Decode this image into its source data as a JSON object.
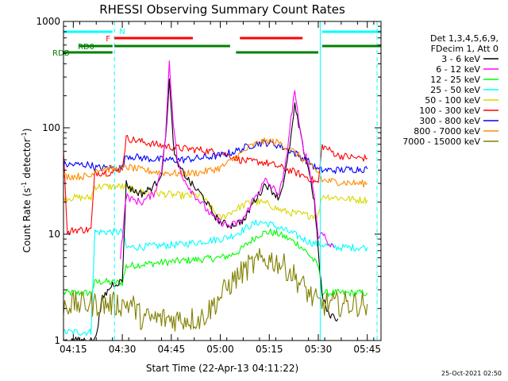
{
  "chart_data": {
    "type": "line",
    "title": "RHESSI Observing Summary Count Rates",
    "xlabel": "Start Time (22-Apr-13 04:11:22)",
    "ylabel": "Count Rate (s⁻¹ detector⁻¹)",
    "ylabel_parts": {
      "text": "Count Rate (s",
      "sup1": "-1",
      "mid": " detector",
      "sup2": "-1",
      "end": ")"
    },
    "yscale": "log",
    "xlim": [
      4.2,
      5.82
    ],
    "ylim": [
      1,
      1000
    ],
    "x_tick_labels": [
      "04:15",
      "04:30",
      "04:45",
      "05:00",
      "05:15",
      "05:30",
      "05:45"
    ],
    "x_tick_values": [
      4.25,
      4.5,
      4.75,
      5.0,
      5.25,
      5.5,
      5.75
    ],
    "y_tick_labels": [
      "1",
      "10",
      "100",
      "1000"
    ],
    "y_tick_values": [
      1,
      10,
      100,
      1000
    ],
    "legend_header": [
      "Det 1,3,4,5,6,9,",
      "FDecim 1, Att 0"
    ],
    "timestamp": "25-Oct-2021 02:50",
    "series": [
      {
        "name": "3 - 6 keV",
        "color": "#000000",
        "x": [
          4.2,
          4.22,
          4.25,
          4.3,
          4.34,
          4.36,
          4.4,
          4.45,
          4.5,
          4.52,
          4.55,
          4.6,
          4.63,
          4.66,
          4.68,
          4.7,
          4.72,
          4.74,
          4.76,
          4.78,
          4.8,
          4.82,
          4.85,
          4.88,
          4.9,
          4.93,
          4.97,
          5.0,
          5.05,
          5.1,
          5.13,
          5.16,
          5.2,
          5.23,
          5.26,
          5.3,
          5.33,
          5.36,
          5.38,
          5.4,
          5.42,
          5.45,
          5.48,
          5.5,
          5.52,
          5.55,
          5.6
        ],
        "y": [
          1,
          1,
          1,
          1,
          1,
          1,
          2.5,
          3.4,
          3.6,
          30,
          26,
          24,
          26,
          28,
          32,
          38,
          75,
          280,
          70,
          45,
          40,
          36,
          30,
          26,
          24,
          20,
          15,
          13,
          12,
          13,
          14,
          19,
          24,
          30,
          26,
          22,
          35,
          80,
          160,
          105,
          68,
          42,
          20,
          7,
          2.6,
          1.8,
          1.6
        ]
      },
      {
        "name": "6 - 12 keV",
        "color": "#ff00ff",
        "x": [
          4.49,
          4.52,
          4.55,
          4.6,
          4.63,
          4.66,
          4.68,
          4.7,
          4.72,
          4.74,
          4.76,
          4.78,
          4.8,
          4.82,
          4.85,
          4.88,
          4.9,
          4.93,
          4.97,
          5.0,
          5.05,
          5.1,
          5.13,
          5.16,
          5.2,
          5.23,
          5.26,
          5.3,
          5.33,
          5.36,
          5.38,
          5.4,
          5.42,
          5.45,
          5.48,
          5.5,
          5.52,
          5.55,
          5.58
        ],
        "y": [
          6,
          23,
          21,
          20,
          22,
          24,
          30,
          40,
          85,
          400,
          110,
          50,
          38,
          32,
          26,
          22,
          20,
          17,
          14,
          13,
          12,
          13,
          15,
          20,
          26,
          32,
          28,
          24,
          40,
          120,
          230,
          110,
          70,
          45,
          23,
          9,
          11,
          8,
          7.5
        ]
      },
      {
        "name": "12 - 25 keV",
        "color": "#00ff00",
        "x": [
          4.2,
          4.25,
          4.3,
          4.34,
          4.36,
          4.4,
          4.45,
          4.5,
          4.52,
          4.6,
          4.7,
          4.8,
          4.9,
          5.0,
          5.05,
          5.1,
          5.15,
          5.2,
          5.25,
          5.3,
          5.35,
          5.4,
          5.45,
          5.5,
          5.52,
          5.6,
          5.7,
          5.75
        ],
        "y": [
          2.8,
          2.8,
          2.8,
          2.8,
          3.5,
          3.6,
          3.5,
          3.5,
          5,
          5.2,
          5.4,
          5.6,
          5.8,
          6,
          6.3,
          7,
          8.5,
          10,
          10.5,
          10,
          9,
          8,
          6.5,
          5,
          2.8,
          2.8,
          2.8,
          2.8
        ]
      },
      {
        "name": "25 - 50 keV",
        "color": "#00ffff",
        "x": [
          4.2,
          4.25,
          4.3,
          4.34,
          4.36,
          4.4,
          4.45,
          4.5,
          4.52,
          4.6,
          4.7,
          4.8,
          4.9,
          5.0,
          5.05,
          5.1,
          5.15,
          5.2,
          5.25,
          5.3,
          5.35,
          5.4,
          5.45,
          5.5,
          5.52,
          5.6,
          5.7,
          5.75
        ],
        "y": [
          1.2,
          1.2,
          1.2,
          1.2,
          10.5,
          10.5,
          10.5,
          10.5,
          7.5,
          7.6,
          7.8,
          8,
          8.5,
          9,
          9.5,
          10.5,
          12,
          13,
          12.5,
          11.5,
          10.5,
          9.5,
          8.5,
          8,
          8,
          7.5,
          7.5,
          7.5
        ]
      },
      {
        "name": "50 - 100 keV",
        "color": "#d8d800",
        "x": [
          4.2,
          4.25,
          4.3,
          4.34,
          4.36,
          4.4,
          4.45,
          4.5,
          4.52,
          4.6,
          4.7,
          4.8,
          4.9,
          5.0,
          5.05,
          5.1,
          5.15,
          5.2,
          5.25,
          5.3,
          5.35,
          5.4,
          5.45,
          5.5,
          5.52,
          5.6,
          5.7,
          5.75
        ],
        "y": [
          22,
          22,
          22,
          22,
          28,
          28,
          28,
          28,
          27,
          25,
          24,
          23,
          23,
          14,
          16,
          18,
          20,
          20,
          19,
          17,
          16,
          15.5,
          15,
          15,
          23,
          22,
          21,
          21
        ]
      },
      {
        "name": "100 - 300 keV",
        "color": "#ff0000",
        "x": [
          4.2,
          4.22,
          4.25,
          4.3,
          4.34,
          4.36,
          4.4,
          4.45,
          4.5,
          4.52,
          4.6,
          4.7,
          4.8,
          4.9,
          5.0,
          5.05,
          5.1,
          5.15,
          5.2,
          5.25,
          5.3,
          5.35,
          5.4,
          5.45,
          5.5,
          5.52,
          5.6,
          5.7,
          5.75
        ],
        "y": [
          62,
          10,
          11,
          11,
          11,
          38,
          38,
          38,
          42,
          80,
          74,
          68,
          64,
          62,
          58,
          55,
          50,
          48,
          48,
          46,
          43,
          40,
          37,
          34,
          30,
          68,
          55,
          52,
          52
        ]
      },
      {
        "name": "300 - 800 keV",
        "color": "#0000ff",
        "x": [
          4.2,
          4.25,
          4.3,
          4.34,
          4.36,
          4.4,
          4.45,
          4.5,
          4.52,
          4.6,
          4.7,
          4.8,
          4.9,
          5.0,
          5.05,
          5.1,
          5.15,
          5.2,
          5.25,
          5.3,
          5.35,
          5.4,
          5.45,
          5.5,
          5.52,
          5.6,
          5.7,
          5.75
        ],
        "y": [
          45,
          45,
          45,
          45,
          42,
          42,
          42,
          42,
          55,
          52,
          50,
          50,
          52,
          55,
          58,
          62,
          68,
          72,
          72,
          68,
          62,
          55,
          48,
          40,
          40,
          40,
          41,
          41
        ]
      },
      {
        "name": "800 - 7000 keV",
        "color": "#ff8c00",
        "x": [
          4.2,
          4.25,
          4.3,
          4.34,
          4.36,
          4.4,
          4.45,
          4.5,
          4.52,
          4.6,
          4.7,
          4.8,
          4.9,
          5.0,
          5.05,
          5.1,
          5.15,
          5.2,
          5.25,
          5.3,
          5.35,
          5.4,
          5.45,
          5.5,
          5.52,
          5.6,
          5.7,
          5.75
        ],
        "y": [
          35,
          35,
          35,
          35,
          41,
          41,
          41,
          41,
          43,
          40,
          38,
          37,
          38,
          42,
          48,
          56,
          66,
          73,
          75,
          72,
          64,
          55,
          45,
          38,
          32,
          31,
          30,
          30
        ]
      },
      {
        "name": "7000 - 15000 keV",
        "color": "#808000",
        "x": [
          4.2,
          4.25,
          4.3,
          4.36,
          4.45,
          4.5,
          4.55,
          4.6,
          4.7,
          4.8,
          4.9,
          4.95,
          5.0,
          5.05,
          5.1,
          5.15,
          5.2,
          5.25,
          5.3,
          5.35,
          5.4,
          5.45,
          5.5,
          5.55,
          5.6,
          5.7,
          5.75
        ],
        "y": [
          2.2,
          2.2,
          2.2,
          2.2,
          2.2,
          2.2,
          2.2,
          1.6,
          1.6,
          1.6,
          1.6,
          2,
          2.6,
          3.4,
          4.2,
          5,
          5.6,
          5.8,
          5.4,
          4.6,
          3.6,
          2.8,
          2.2,
          2.2,
          2.2,
          2.2,
          2.2
        ]
      }
    ],
    "state_bars": [
      {
        "label": "N",
        "color": "#00ffff",
        "segments": [
          [
            4.2,
            4.45
          ],
          [
            5.52,
            5.82
          ]
        ]
      },
      {
        "label": "F",
        "color": "#ff0000",
        "segments": [
          [
            4.46,
            4.86
          ],
          [
            5.1,
            5.42
          ]
        ]
      },
      {
        "label": "RD0",
        "color": "#008000",
        "segments": [
          [
            4.28,
            4.45
          ],
          [
            4.46,
            5.05
          ],
          [
            5.52,
            5.82
          ]
        ]
      },
      {
        "label": "RDB",
        "color": "#008000",
        "segments": [
          [
            4.2,
            4.45
          ],
          [
            5.08,
            5.5
          ]
        ]
      }
    ],
    "vlines": [
      {
        "x": 4.46,
        "color": "#00ffff",
        "style": "dashed"
      },
      {
        "x": 5.51,
        "color": "#00ffff",
        "style": "solid"
      },
      {
        "x": 5.8,
        "color": "#00ffff",
        "style": "dashed"
      }
    ]
  }
}
